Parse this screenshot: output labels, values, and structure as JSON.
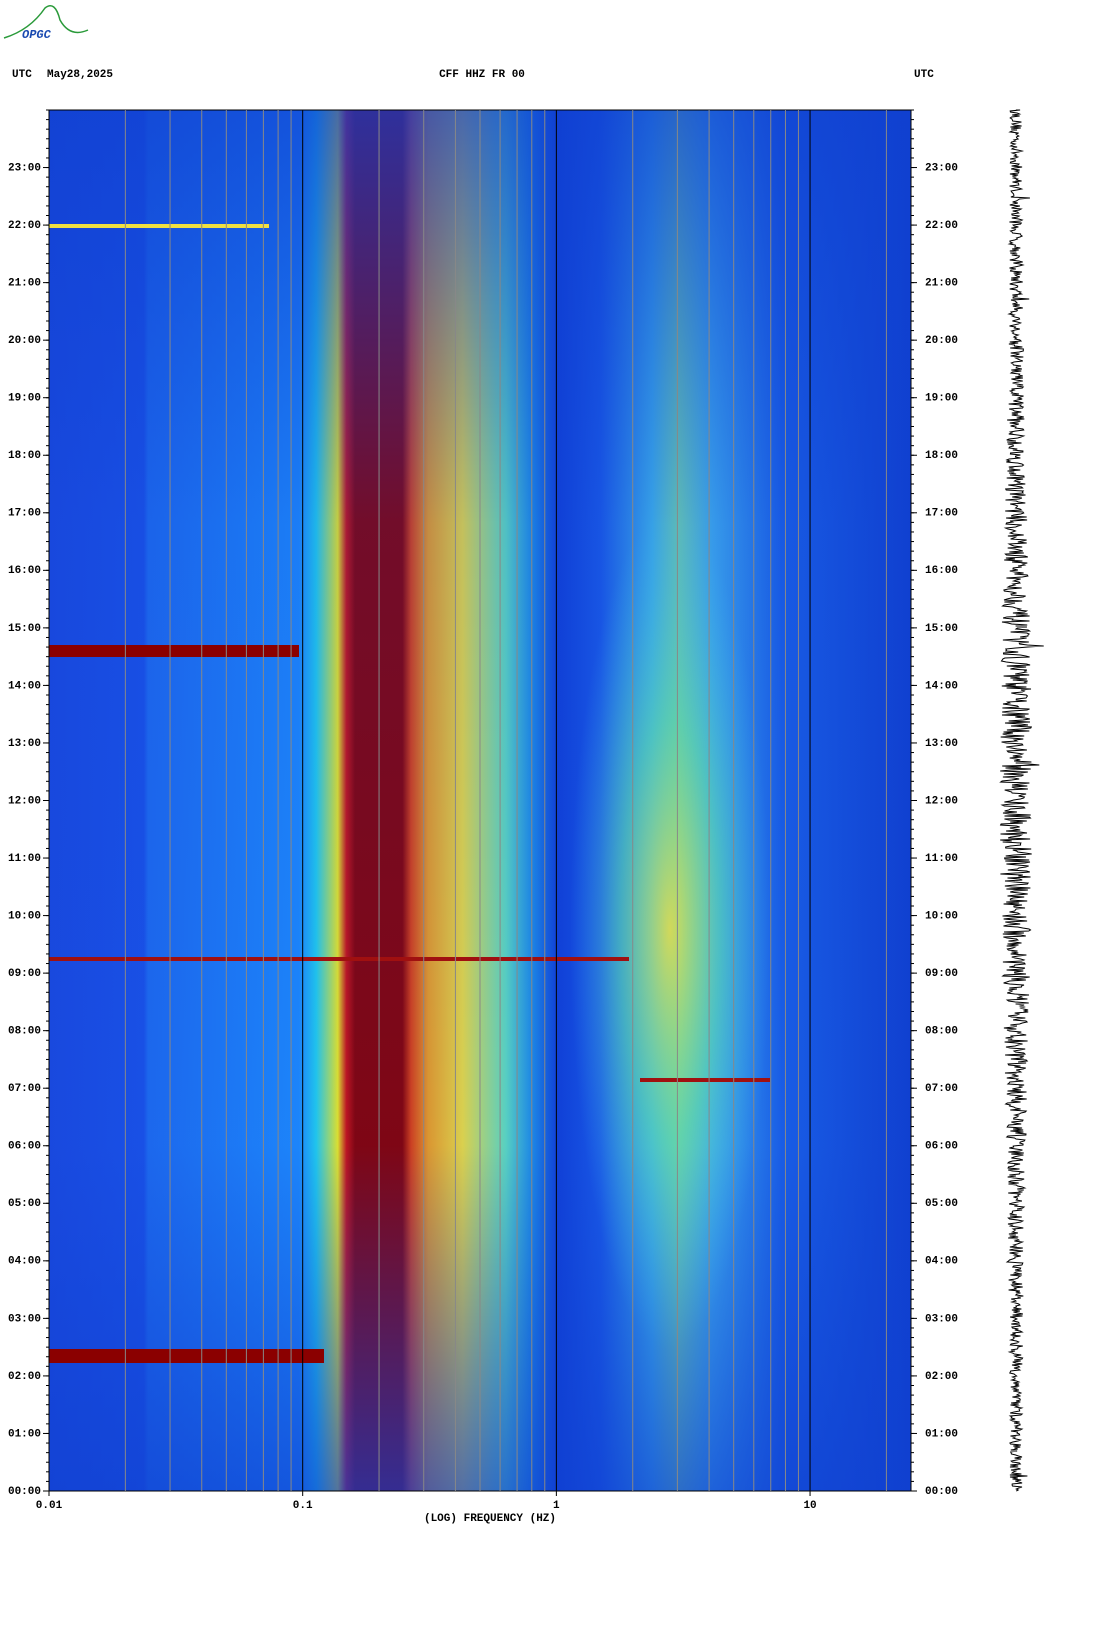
{
  "logo": "OPGC",
  "chart_data": {
    "type": "spectrogram",
    "title": "CFF HHZ FR 00",
    "left_label": "UTC",
    "date": "May28,2025",
    "right_label": "UTC",
    "xlabel": "(LOG) FREQUENCY (HZ)",
    "xscale": "log",
    "xlim": [
      0.01,
      25
    ],
    "xticks": [
      0.01,
      0.1,
      1,
      10
    ],
    "ylim": [
      0,
      24
    ],
    "yticks": [
      {
        "value": 0,
        "label": "00:00"
      },
      {
        "value": 1,
        "label": "01:00"
      },
      {
        "value": 2,
        "label": "02:00"
      },
      {
        "value": 3,
        "label": "03:00"
      },
      {
        "value": 4,
        "label": "04:00"
      },
      {
        "value": 5,
        "label": "05:00"
      },
      {
        "value": 6,
        "label": "06:00"
      },
      {
        "value": 7,
        "label": "07:00"
      },
      {
        "value": 8,
        "label": "08:00"
      },
      {
        "value": 9,
        "label": "09:00"
      },
      {
        "value": 10,
        "label": "10:00"
      },
      {
        "value": 11,
        "label": "11:00"
      },
      {
        "value": 12,
        "label": "12:00"
      },
      {
        "value": 13,
        "label": "13:00"
      },
      {
        "value": 14,
        "label": "14:00"
      },
      {
        "value": 15,
        "label": "15:00"
      },
      {
        "value": 16,
        "label": "16:00"
      },
      {
        "value": 17,
        "label": "17:00"
      },
      {
        "value": 18,
        "label": "18:00"
      },
      {
        "value": 19,
        "label": "19:00"
      },
      {
        "value": 20,
        "label": "20:00"
      },
      {
        "value": 21,
        "label": "21:00"
      },
      {
        "value": 22,
        "label": "22:00"
      },
      {
        "value": 23,
        "label": "23:00"
      }
    ],
    "grid": true
  }
}
